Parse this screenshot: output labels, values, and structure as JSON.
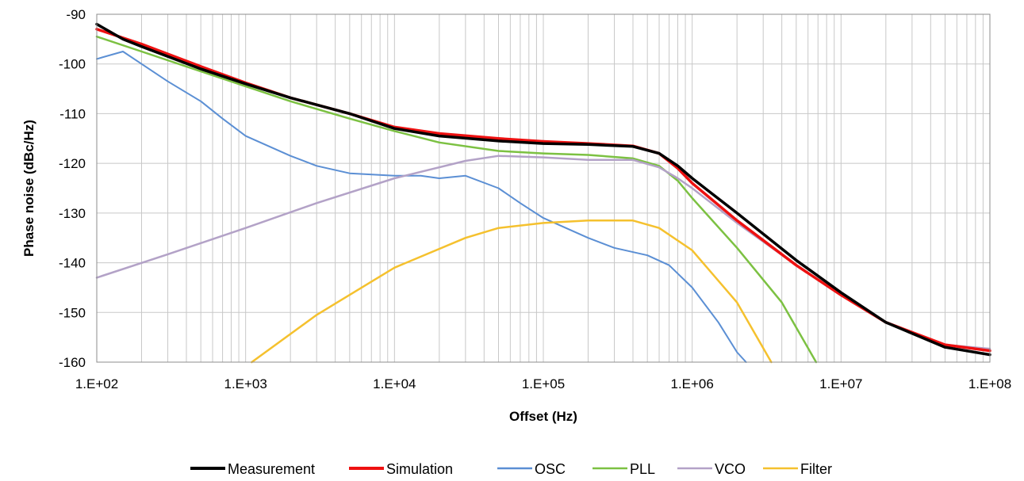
{
  "chart_data": {
    "type": "line",
    "xlabel": "Offset (Hz)",
    "ylabel": "Phase noise (dBc/Hz)",
    "x_scale": "log",
    "xlim": [
      100,
      100000000
    ],
    "ylim": [
      -160,
      -90
    ],
    "x_ticks": [
      "1.E+02",
      "1.E+03",
      "1.E+04",
      "1.E+05",
      "1.E+06",
      "1.E+07",
      "1.E+08"
    ],
    "y_ticks": [
      "-90",
      "-100",
      "-110",
      "-120",
      "-130",
      "-140",
      "-150",
      "-160"
    ],
    "grid": true,
    "legend_position": "bottom",
    "series": [
      {
        "name": "Measurement",
        "color": "#000000",
        "width": 3.5,
        "points": [
          [
            100,
            -92
          ],
          [
            150,
            -95
          ],
          [
            200,
            -96.5
          ],
          [
            300,
            -98.5
          ],
          [
            500,
            -101
          ],
          [
            1000,
            -104
          ],
          [
            2000,
            -106.8
          ],
          [
            5000,
            -110
          ],
          [
            10000,
            -113
          ],
          [
            20000,
            -114.5
          ],
          [
            50000,
            -115.5
          ],
          [
            100000,
            -116
          ],
          [
            200000,
            -116.2
          ],
          [
            400000,
            -116.6
          ],
          [
            600000,
            -118
          ],
          [
            800000,
            -120.5
          ],
          [
            1000000,
            -123
          ],
          [
            2000000,
            -130
          ],
          [
            5000000,
            -139.5
          ],
          [
            10000000,
            -146
          ],
          [
            20000000,
            -152
          ],
          [
            50000000,
            -157
          ],
          [
            100000000,
            -158.5
          ]
        ]
      },
      {
        "name": "Simulation",
        "color": "#ee1111",
        "width": 3.5,
        "points": [
          [
            100,
            -93
          ],
          [
            200,
            -96
          ],
          [
            500,
            -100.5
          ],
          [
            1000,
            -103.8
          ],
          [
            2000,
            -106.8
          ],
          [
            5000,
            -110
          ],
          [
            10000,
            -112.7
          ],
          [
            20000,
            -114
          ],
          [
            50000,
            -115
          ],
          [
            100000,
            -115.6
          ],
          [
            200000,
            -116
          ],
          [
            400000,
            -116.5
          ],
          [
            600000,
            -118
          ],
          [
            800000,
            -121
          ],
          [
            1000000,
            -124
          ],
          [
            2000000,
            -131.5
          ],
          [
            5000000,
            -140.5
          ],
          [
            10000000,
            -146.5
          ],
          [
            20000000,
            -152
          ],
          [
            50000000,
            -156.5
          ],
          [
            100000000,
            -157.7
          ]
        ]
      },
      {
        "name": "OSC",
        "color": "#5b8fd4",
        "width": 2,
        "points": [
          [
            100,
            -99
          ],
          [
            150,
            -97.5
          ],
          [
            200,
            -100
          ],
          [
            300,
            -103.5
          ],
          [
            500,
            -107.5
          ],
          [
            700,
            -111
          ],
          [
            1000,
            -114.5
          ],
          [
            2000,
            -118.5
          ],
          [
            3000,
            -120.5
          ],
          [
            5000,
            -122
          ],
          [
            10000,
            -122.5
          ],
          [
            15000,
            -122.5
          ],
          [
            20000,
            -123
          ],
          [
            30000,
            -122.5
          ],
          [
            50000,
            -125
          ],
          [
            70000,
            -128
          ],
          [
            100000,
            -131
          ],
          [
            200000,
            -135
          ],
          [
            300000,
            -137
          ],
          [
            500000,
            -138.5
          ],
          [
            700000,
            -140.5
          ],
          [
            1000000,
            -145
          ],
          [
            1500000,
            -152
          ],
          [
            2000000,
            -158
          ],
          [
            2300000,
            -160
          ]
        ]
      },
      {
        "name": "PLL",
        "color": "#7cc142",
        "width": 2.5,
        "points": [
          [
            100,
            -94.5
          ],
          [
            200,
            -97.5
          ],
          [
            500,
            -101.5
          ],
          [
            1000,
            -104.5
          ],
          [
            2000,
            -107.5
          ],
          [
            5000,
            -111
          ],
          [
            10000,
            -113.5
          ],
          [
            20000,
            -115.8
          ],
          [
            50000,
            -117.5
          ],
          [
            100000,
            -118
          ],
          [
            200000,
            -118.3
          ],
          [
            400000,
            -119
          ],
          [
            600000,
            -120.5
          ],
          [
            800000,
            -123.5
          ],
          [
            1000000,
            -127
          ],
          [
            2000000,
            -137
          ],
          [
            4000000,
            -148
          ],
          [
            6800000,
            -160
          ]
        ]
      },
      {
        "name": "VCO",
        "color": "#b3a2c7",
        "width": 2.5,
        "points": [
          [
            100,
            -143
          ],
          [
            300,
            -138.3
          ],
          [
            1000,
            -133
          ],
          [
            3000,
            -128
          ],
          [
            10000,
            -123
          ],
          [
            30000,
            -119.5
          ],
          [
            50000,
            -118.5
          ],
          [
            100000,
            -118.8
          ],
          [
            200000,
            -119.3
          ],
          [
            400000,
            -119.3
          ],
          [
            600000,
            -120.8
          ],
          [
            800000,
            -123
          ],
          [
            1000000,
            -125
          ],
          [
            2000000,
            -132
          ],
          [
            5000000,
            -140.5
          ],
          [
            10000000,
            -146.5
          ],
          [
            20000000,
            -152
          ],
          [
            50000000,
            -156.5
          ],
          [
            100000000,
            -157.3
          ]
        ]
      },
      {
        "name": "Filter",
        "color": "#f5c12e",
        "width": 2.5,
        "points": [
          [
            1100,
            -160
          ],
          [
            3000,
            -150.5
          ],
          [
            10000,
            -141
          ],
          [
            30000,
            -135
          ],
          [
            50000,
            -133
          ],
          [
            100000,
            -132
          ],
          [
            200000,
            -131.5
          ],
          [
            400000,
            -131.5
          ],
          [
            600000,
            -133
          ],
          [
            1000000,
            -137.5
          ],
          [
            2000000,
            -148
          ],
          [
            3400000,
            -160
          ]
        ]
      }
    ]
  }
}
